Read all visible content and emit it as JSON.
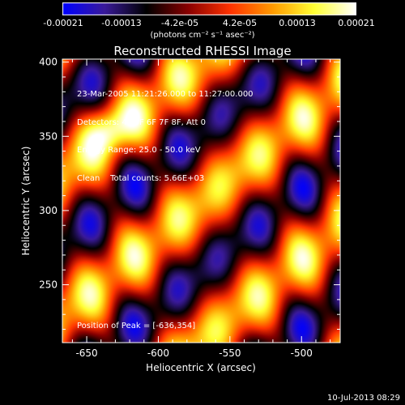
{
  "colorbar": {
    "ticks": [
      "-0.00021",
      "-0.00013",
      "-4.2e-05",
      "4.2e-05",
      "0.00013",
      "0.00021"
    ],
    "units": "(photons cm⁻² s⁻¹ asec⁻²)",
    "range": [
      -0.00021,
      0.00021
    ],
    "colors": [
      "#0000ff",
      "#3a1a9a",
      "#000000",
      "#8a0000",
      "#ff3300",
      "#ff9900",
      "#ffff33",
      "#ffffff"
    ]
  },
  "chart_data": {
    "type": "heatmap",
    "title": "Reconstructed RHESSI Image",
    "xlabel": "Heliocentric X (arcsec)",
    "ylabel": "Heliocentric Y (arcsec)",
    "xlim": [
      -667,
      -473
    ],
    "ylim": [
      211,
      402
    ],
    "x_ticks": [
      -650,
      -600,
      -550,
      -500
    ],
    "y_ticks": [
      250,
      300,
      350,
      400
    ],
    "peak": [
      -636,
      354
    ],
    "annotations": [
      "23-Mar-2005 11:21:26.000 to 11:27:00.000",
      "Detectors: 4F 5F 6F 7F 8F, Att 0",
      "Energy Range: 25.0 - 50.0 keV",
      "Clean    Total counts: 5.66E+03"
    ],
    "peak_label": "Position of Peak = [-636,354]"
  },
  "footer": {
    "timestamp": "10-Jul-2013 08:29"
  }
}
